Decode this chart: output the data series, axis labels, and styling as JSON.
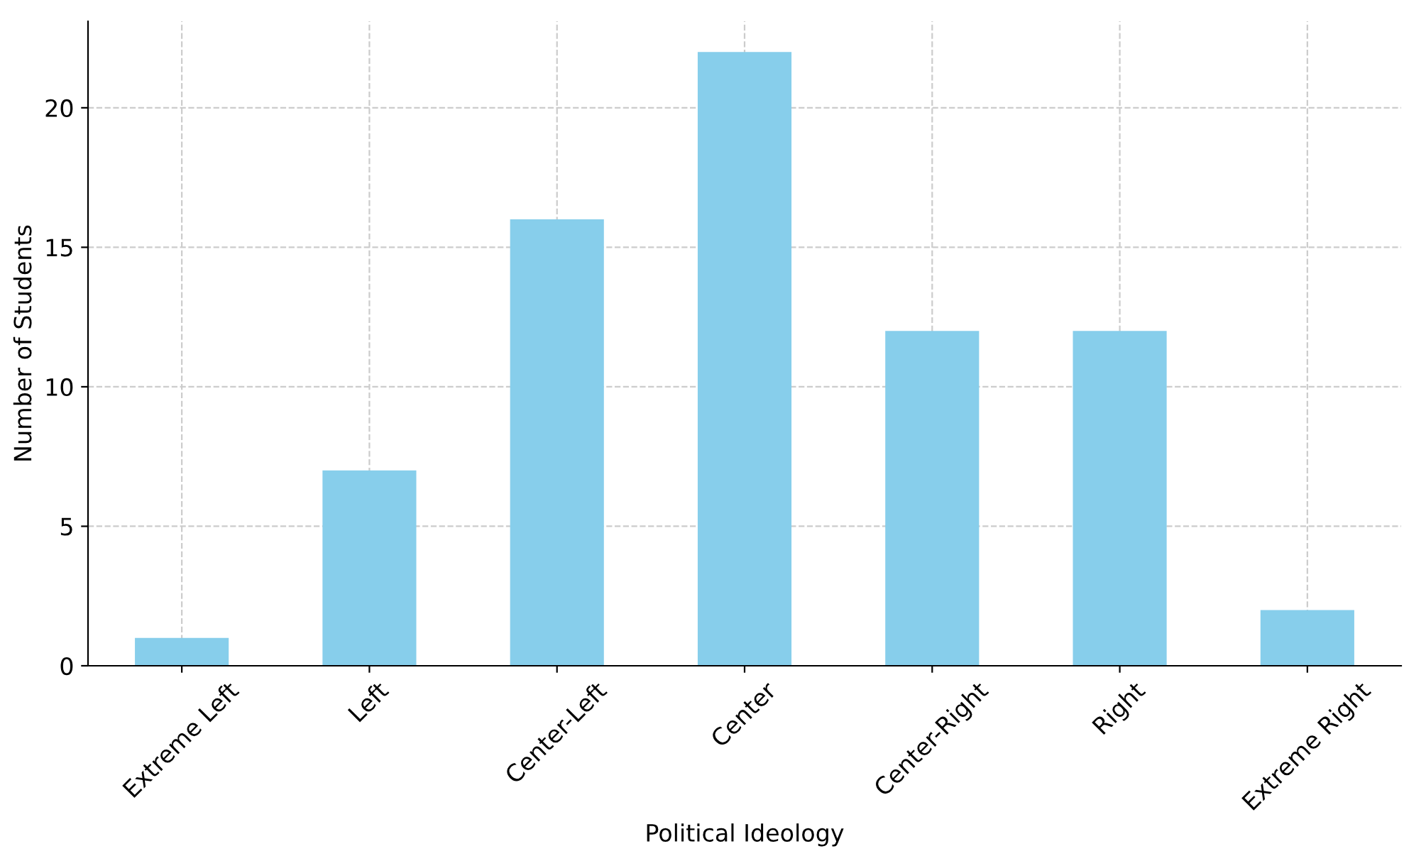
{
  "chart_data": {
    "type": "bar",
    "xlabel": "Political Ideology",
    "ylabel": "Number of Students",
    "categories": [
      "Extreme Left",
      "Left",
      "Center-Left",
      "Center",
      "Center-Right",
      "Right",
      "Extreme Right"
    ],
    "values": [
      1,
      7,
      16,
      22,
      12,
      12,
      2
    ],
    "color": "#87ceeb",
    "ylim": [
      0,
      23.1
    ],
    "yticks": [
      0,
      5,
      10,
      15,
      20
    ],
    "grid": true
  }
}
